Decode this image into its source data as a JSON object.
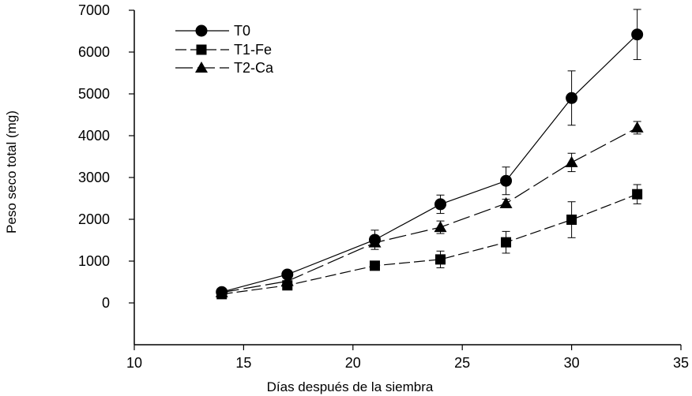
{
  "chart_data": {
    "type": "line",
    "title": "",
    "xlabel": "Días después de la siembra",
    "ylabel": "Peso seco total (mg)",
    "xlim": [
      10,
      35
    ],
    "ylim": [
      -1000,
      7000
    ],
    "xticks": [
      10,
      15,
      20,
      25,
      30,
      35
    ],
    "yticks": [
      0,
      1000,
      2000,
      3000,
      4000,
      5000,
      6000,
      7000
    ],
    "grid": false,
    "legend_position": "top-left",
    "x": [
      14,
      17,
      21,
      24,
      27,
      30,
      33
    ],
    "series": [
      {
        "name": "T0",
        "marker": "circle",
        "line": "solid",
        "values": [
          260,
          680,
          1510,
          2360,
          2920,
          4900,
          6420
        ],
        "errors": [
          30,
          60,
          230,
          220,
          330,
          650,
          600
        ]
      },
      {
        "name": "T1-Fe",
        "marker": "square",
        "line": "dashed",
        "values": [
          210,
          420,
          890,
          1040,
          1450,
          1990,
          2600
        ],
        "errors": [
          30,
          60,
          80,
          200,
          260,
          430,
          230
        ]
      },
      {
        "name": "T2-Ca",
        "marker": "triangle",
        "line": "longdash",
        "values": [
          250,
          520,
          1440,
          1810,
          2380,
          3360,
          4190
        ],
        "errors": [
          30,
          60,
          80,
          150,
          100,
          220,
          150
        ]
      }
    ]
  }
}
